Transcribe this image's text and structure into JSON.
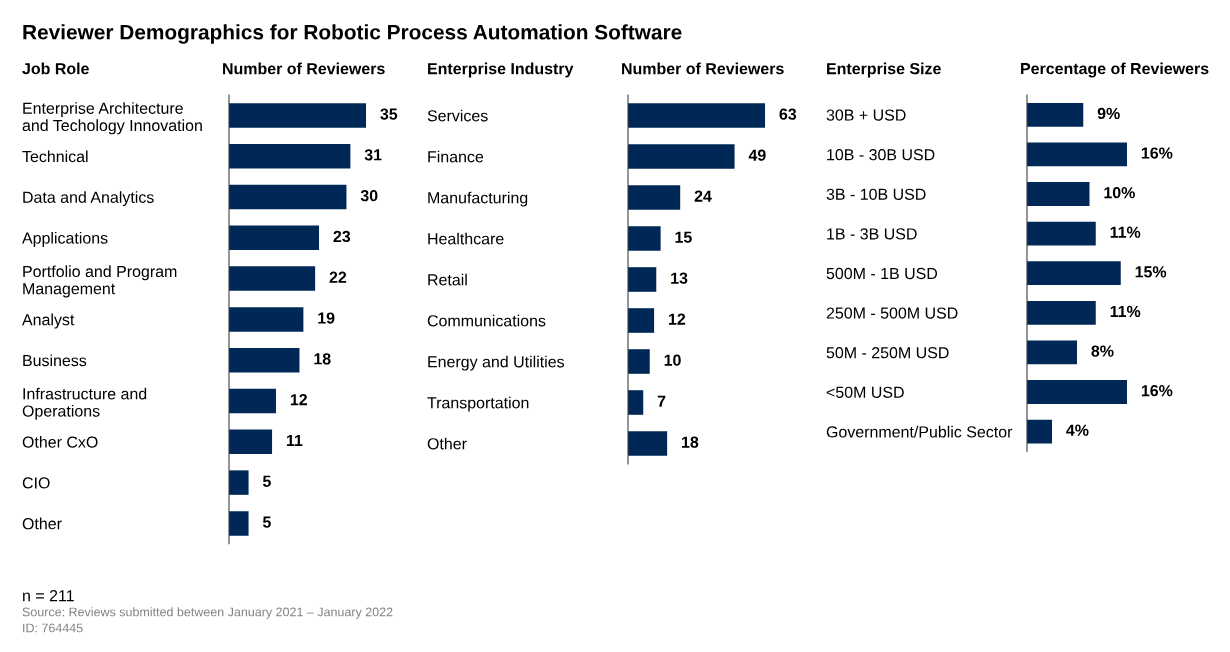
{
  "chart_data": [
    {
      "type": "bar",
      "orientation": "horizontal",
      "title": "Reviewer Demographics for Robotic Process Automation Software",
      "ylabel": "Job Role",
      "xlabel": "Number of Reviewers",
      "categories": [
        "Enterprise Architecture\nand Techology Innovation",
        "Technical",
        "Data and Analytics",
        "Applications",
        "Portfolio and Program\nManagement",
        "Analyst",
        "Business",
        "Infrastructure and\nOperations",
        "Other CxO",
        "CIO",
        "Other"
      ],
      "values": [
        35,
        31,
        30,
        23,
        22,
        19,
        18,
        12,
        11,
        5,
        5
      ],
      "color": "#002856",
      "data_labels": true,
      "annotations": [
        "n = 211",
        "Source: Reviews submitted between January 2021 – January 2022",
        "ID: 764445"
      ]
    },
    {
      "type": "bar",
      "orientation": "horizontal",
      "ylabel": "Enterprise Industry",
      "xlabel": "Number of Reviewers",
      "categories": [
        "Services",
        "Finance",
        "Manufacturing",
        "Healthcare",
        "Retail",
        "Communications",
        "Energy and Utilities",
        "Transportation",
        "Other"
      ],
      "values": [
        63,
        49,
        24,
        15,
        13,
        12,
        10,
        7,
        18
      ],
      "color": "#002856",
      "data_labels": true
    },
    {
      "type": "bar",
      "orientation": "horizontal",
      "ylabel": "Enterprise Size",
      "xlabel": "Percentage of Reviewers",
      "categories": [
        "30B + USD",
        "10B - 30B USD",
        "3B - 10B USD",
        "1B - 3B USD",
        "500M - 1B USD",
        "250M - 500M USD",
        "50M - 250M USD",
        "<50M USD",
        "Government/Public Sector"
      ],
      "values": [
        9,
        16,
        10,
        11,
        15,
        11,
        8,
        16,
        4
      ],
      "color": "#002856",
      "value_labels": [
        "9%",
        "16%",
        "10%",
        "11%",
        "15%",
        "11%",
        "8%",
        "16%",
        "4%"
      ]
    }
  ]
}
